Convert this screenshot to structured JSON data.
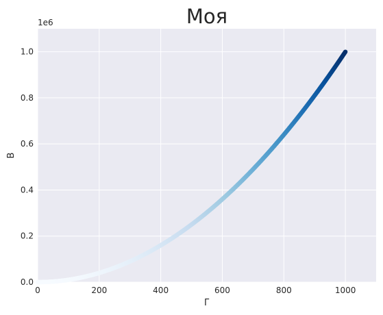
{
  "chart_data": {
    "type": "scatter",
    "title": "Моя",
    "xlabel": "Г",
    "ylabel": "В",
    "y_offset_label": "1e6",
    "xlim": [
      0,
      1100
    ],
    "ylim": [
      0,
      1.1
    ],
    "x_ticks": [
      "0",
      "200",
      "400",
      "600",
      "800",
      "1000"
    ],
    "y_ticks": [
      "0.0",
      "0.2",
      "0.4",
      "0.6",
      "0.8",
      "1.0"
    ],
    "y_scale_factor": 1000000,
    "function": "y = x^2",
    "x_range": [
      0,
      1000
    ],
    "colormap": "Blues",
    "colormap_stops": [
      "#f7fbff",
      "#deebf7",
      "#c6dbef",
      "#9ecae1",
      "#6baed6",
      "#4292c6",
      "#2171b5",
      "#08519c",
      "#08306b"
    ],
    "grid": true,
    "background": "#eaeaf2",
    "grid_color": "#ffffff"
  }
}
